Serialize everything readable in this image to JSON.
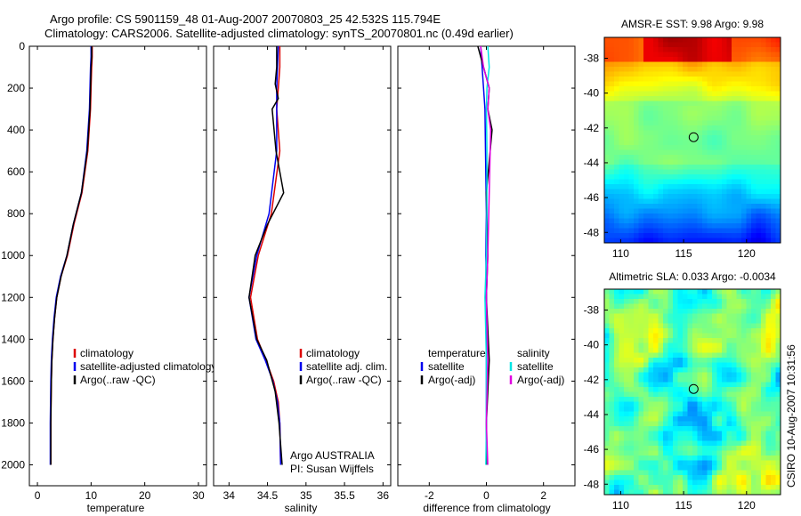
{
  "header": {
    "line1": "Argo profile: CS 5901159_48 01-Aug-2007 20070803_25 42.532S 115.794E",
    "line2": "Climatology: CARS2006. Satellite-adjusted climatology: synTS_20070801.nc (0.49d earlier)"
  },
  "sidebar_text": "CSIRO 10-Aug-2007 10:31:56",
  "colors": {
    "climatology": "#dd0000",
    "satellite": "#0000ee",
    "argo": "#000000",
    "sal_satellite": "#00e5e5",
    "sal_argo": "#e000e0"
  },
  "chart_data": [
    {
      "type": "line",
      "id": "temperature-profile",
      "xlabel": "temperature",
      "ylabel": "",
      "xlim": [
        -1.5,
        31.5
      ],
      "ylim": [
        2100,
        0
      ],
      "xticks": [
        0,
        10,
        20,
        30
      ],
      "yticks": [
        0,
        200,
        400,
        600,
        800,
        1000,
        1200,
        1400,
        1600,
        1800,
        2000
      ],
      "y_reversed": true,
      "series": [
        {
          "name": "climatology",
          "color": "#dd0000",
          "x": [
            10.2,
            10.2,
            10.1,
            10.0,
            9.9,
            9.4,
            8.3,
            6.8,
            5.6,
            4.4,
            3.6,
            3.2,
            2.9,
            2.7,
            2.6,
            2.5,
            2.5
          ],
          "y": [
            0,
            50,
            100,
            200,
            300,
            500,
            700,
            850,
            1000,
            1100,
            1200,
            1300,
            1400,
            1500,
            1600,
            1800,
            2000
          ]
        },
        {
          "name": "satellite-adjusted climatology",
          "color": "#0000ee",
          "x": [
            10.0,
            10.0,
            9.9,
            9.8,
            9.7,
            9.2,
            8.2,
            6.7,
            5.5,
            4.3,
            3.5,
            3.1,
            2.8,
            2.6,
            2.5,
            2.4,
            2.4
          ],
          "y": [
            0,
            50,
            100,
            200,
            300,
            500,
            700,
            850,
            1000,
            1100,
            1200,
            1300,
            1400,
            1500,
            1600,
            1800,
            2000
          ]
        },
        {
          "name": "Argo(..raw -QC)",
          "color": "#000000",
          "x": [
            10.1,
            10.1,
            10.0,
            9.9,
            9.8,
            9.3,
            8.2,
            6.7,
            5.5,
            4.4,
            3.6,
            3.2,
            2.9,
            2.7,
            2.6,
            2.5,
            2.5
          ],
          "y": [
            0,
            50,
            100,
            200,
            300,
            500,
            700,
            850,
            1000,
            1100,
            1200,
            1300,
            1400,
            1500,
            1600,
            1800,
            2000
          ]
        }
      ],
      "legend": {
        "position": "right-middle",
        "labels": [
          "climatology",
          "satellite-adjusted climatology",
          "Argo(..raw -QC)"
        ]
      }
    },
    {
      "type": "line",
      "id": "salinity-profile",
      "xlabel": "salinity",
      "xlim": [
        33.8,
        36.1
      ],
      "ylim": [
        2100,
        0
      ],
      "xticks": [
        34,
        34.5,
        35,
        35.5,
        36
      ],
      "y_reversed": true,
      "series": [
        {
          "name": "climatology",
          "color": "#dd0000",
          "x": [
            34.66,
            34.66,
            34.64,
            34.62,
            34.66,
            34.55,
            34.38,
            34.28,
            34.37,
            34.48,
            34.58,
            34.64,
            34.66,
            34.67
          ],
          "y": [
            0,
            100,
            200,
            300,
            500,
            800,
            1000,
            1200,
            1400,
            1500,
            1600,
            1700,
            1800,
            2000
          ]
        },
        {
          "name": "satellite adj. clim.",
          "color": "#0000ee",
          "x": [
            34.64,
            34.63,
            34.62,
            34.62,
            34.62,
            34.52,
            34.36,
            34.26,
            34.35,
            34.47,
            34.57,
            34.63,
            34.66,
            34.67
          ],
          "y": [
            0,
            100,
            200,
            300,
            500,
            800,
            1000,
            1200,
            1400,
            1500,
            1600,
            1700,
            1800,
            2000
          ]
        },
        {
          "name": "Argo(..raw -QC)",
          "color": "#000000",
          "x": [
            34.62,
            34.62,
            34.6,
            34.64,
            34.56,
            34.61,
            34.71,
            34.5,
            34.34,
            34.26,
            34.36,
            34.49,
            34.6,
            34.65,
            34.69
          ],
          "y": [
            0,
            100,
            180,
            250,
            300,
            500,
            700,
            850,
            1000,
            1200,
            1400,
            1500,
            1650,
            1800,
            2000
          ]
        }
      ],
      "legend": {
        "position": "right-middle",
        "labels": [
          "climatology",
          "satellite adj. clim.",
          "Argo(..raw -QC)"
        ]
      },
      "annotation": [
        "Argo AUSTRALIA",
        "PI: Susan Wijffels"
      ]
    },
    {
      "type": "line",
      "id": "difference-profile",
      "xlabel": "difference from climatology",
      "xlim": [
        -3.1,
        3.1
      ],
      "ylim": [
        2100,
        0
      ],
      "xticks": [
        -2,
        0,
        2
      ],
      "y_reversed": true,
      "series": [
        {
          "name": "temperature satellite",
          "color": "#0000ee",
          "x": [
            -0.2,
            -0.15,
            -0.1,
            -0.05,
            -0.03,
            0.0,
            -0.02,
            0.0,
            0.0,
            0.0,
            0.0
          ],
          "y": [
            0,
            100,
            200,
            300,
            500,
            800,
            1000,
            1200,
            1500,
            1800,
            2000
          ]
        },
        {
          "name": "temperature Argo(-adj)",
          "color": "#000000",
          "x": [
            -0.3,
            -0.1,
            0.1,
            0.05,
            0.2,
            0.0,
            0.05,
            0.0,
            0.1,
            0.0,
            0.0
          ],
          "y": [
            0,
            100,
            200,
            300,
            400,
            700,
            1000,
            1200,
            1500,
            1800,
            2000
          ]
        },
        {
          "name": "salinity satellite",
          "color": "#00e5e5",
          "x": [
            0.05,
            0.1,
            0.02,
            0.0,
            0.02,
            0.02,
            0.0,
            -0.05,
            0.0,
            0.0,
            -0.02
          ],
          "y": [
            0,
            100,
            200,
            300,
            500,
            800,
            1000,
            1200,
            1500,
            1800,
            2000
          ]
        },
        {
          "name": "salinity Argo(-adj)",
          "color": "#e000e0",
          "x": [
            -0.2,
            -0.1,
            0.1,
            0.05,
            0.15,
            0.1,
            0.05,
            0.0,
            0.05,
            0.0,
            0.05
          ],
          "y": [
            0,
            100,
            200,
            300,
            400,
            700,
            1000,
            1200,
            1500,
            1800,
            2000
          ]
        }
      ],
      "legend": {
        "position": "right-middle",
        "headers": [
          "temperature",
          "salinity"
        ],
        "labels": [
          "satellite",
          "Argo(-adj)",
          "satellite",
          "Argo(-adj)"
        ]
      }
    },
    {
      "type": "heatmap",
      "id": "sst-map",
      "title": "AMSR-E SST: 9.98 Argo: 9.98",
      "xlim": [
        108.7,
        122.7
      ],
      "ylim": [
        -48.6,
        -36.8
      ],
      "xticks": [
        110,
        115,
        120
      ],
      "yticks": [
        -38,
        -40,
        -42,
        -44,
        -46,
        -48
      ],
      "float_position": {
        "lon": 115.794,
        "lat": -42.532
      }
    },
    {
      "type": "heatmap",
      "id": "sla-map",
      "title": "Altimetric SLA: 0.033 Argo: -0.0034",
      "xlim": [
        108.7,
        122.7
      ],
      "ylim": [
        -48.6,
        -36.8
      ],
      "xticks": [
        110,
        115,
        120
      ],
      "yticks": [
        -38,
        -40,
        -42,
        -44,
        -46,
        -48
      ],
      "float_position": {
        "lon": 115.794,
        "lat": -42.532
      }
    }
  ]
}
